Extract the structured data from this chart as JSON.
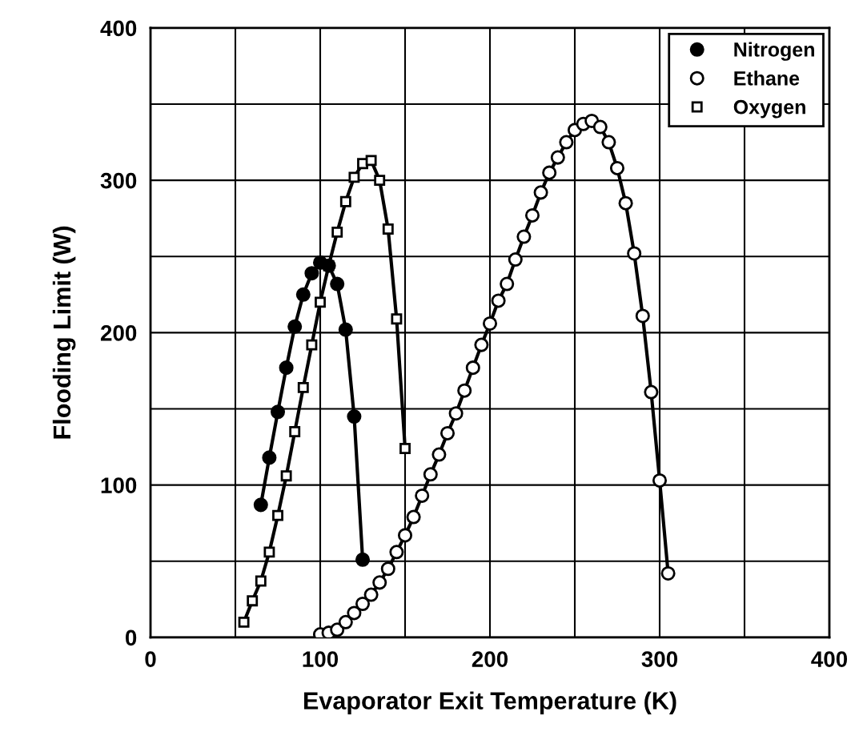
{
  "chart_data": {
    "type": "line",
    "xlabel": "Evaporator Exit Temperature (K)",
    "ylabel": "Flooding Limit (W)",
    "xlim": [
      0,
      400
    ],
    "ylim": [
      0,
      400
    ],
    "xticks": [
      0,
      {
        "value": 50,
        "label": null
      },
      100,
      {
        "value": 150,
        "label": null
      },
      200,
      {
        "value": 250,
        "label": null
      },
      300,
      {
        "value": 350,
        "label": null
      },
      400
    ],
    "yticks": [
      0,
      {
        "value": 50,
        "label": null
      },
      100,
      {
        "value": 150,
        "label": null
      },
      200,
      {
        "value": 250,
        "label": null
      },
      300,
      {
        "value": 350,
        "label": null
      },
      400
    ],
    "grid": true,
    "legend": "top right",
    "line_style": "solid",
    "series": [
      {
        "name": "Nitrogen",
        "color": "#000000",
        "marker": "circle",
        "x": [
          65,
          70,
          75,
          80,
          85,
          90,
          95,
          100,
          105,
          110,
          115,
          120,
          125
        ],
        "values": [
          87,
          118,
          148,
          177,
          204,
          225,
          239,
          246,
          244,
          232,
          202,
          145,
          51
        ]
      },
      {
        "name": "Ethane",
        "color": "#000000",
        "marker": "circle",
        "x": [
          100,
          105,
          110,
          115,
          120,
          125,
          130,
          135,
          140,
          145,
          150,
          155,
          160,
          165,
          170,
          175,
          180,
          185,
          190,
          195,
          200,
          205,
          210,
          215,
          220,
          225,
          230,
          235,
          240,
          245,
          250,
          255,
          260,
          265,
          270,
          275,
          280,
          285,
          290,
          295,
          300,
          305
        ],
        "values": [
          2,
          3,
          5,
          10,
          16,
          22,
          28,
          36,
          45,
          56,
          67,
          79,
          93,
          107,
          120,
          134,
          147,
          162,
          177,
          192,
          206,
          221,
          232,
          248,
          263,
          277,
          292,
          305,
          315,
          325,
          333,
          337,
          339,
          335,
          325,
          308,
          285,
          252,
          211,
          161,
          103,
          42
        ]
      },
      {
        "name": "Oxygen",
        "color": "#000000",
        "marker": "square",
        "x": [
          55,
          60,
          65,
          70,
          75,
          80,
          85,
          90,
          95,
          100,
          105,
          110,
          115,
          120,
          125,
          130,
          135,
          140,
          145,
          150
        ],
        "values": [
          10,
          24,
          37,
          56,
          80,
          106,
          135,
          164,
          192,
          220,
          244,
          266,
          286,
          302,
          311,
          313,
          300,
          268,
          209,
          124
        ]
      }
    ]
  }
}
